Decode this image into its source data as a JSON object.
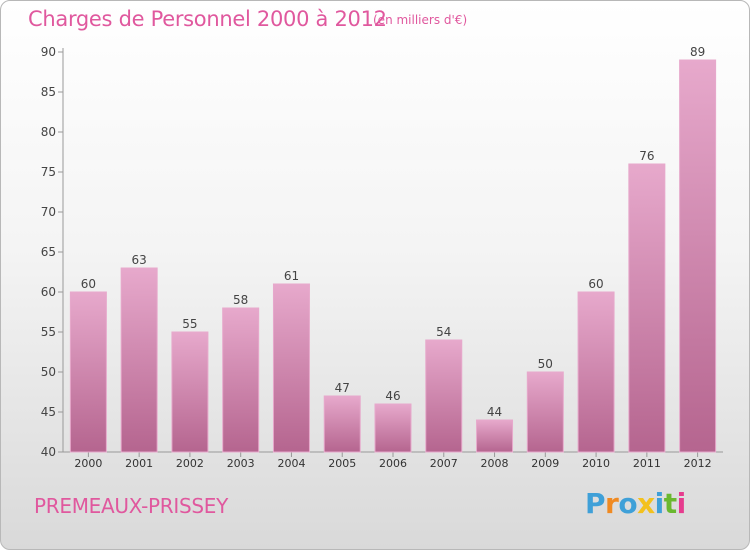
{
  "title": "Charges de Personnel 2000 à 2012",
  "subtitle": "(en milliers d'€)",
  "commune": "PREMEAUX-PRISSEY",
  "logo": {
    "letters": [
      "P",
      "r",
      "o",
      "x",
      "i",
      "t",
      "i"
    ],
    "colors": [
      "#3fa0d8",
      "#f08a22",
      "#3fa0d8",
      "#f3c11d",
      "#3fa0d8",
      "#6ab82f",
      "#e63c8e"
    ]
  },
  "colors": {
    "bar": "#d88db8",
    "bar_light": "#e7a9cc",
    "bar_dark": "#b5658f",
    "text": "#e0589e"
  },
  "chart_data": {
    "type": "bar",
    "categories": [
      "2000",
      "2001",
      "2002",
      "2003",
      "2004",
      "2005",
      "2006",
      "2007",
      "2008",
      "2009",
      "2010",
      "2011",
      "2012"
    ],
    "values": [
      60,
      63,
      55,
      58,
      61,
      47,
      46,
      54,
      44,
      50,
      60,
      76,
      89
    ],
    "data_labels": [
      "60",
      "63",
      "55",
      "58",
      "61",
      "47",
      "46",
      "54",
      "44",
      "50",
      "60",
      "76",
      "89"
    ],
    "ylim": [
      40,
      90
    ],
    "yticks": [
      40,
      45,
      50,
      55,
      60,
      65,
      70,
      75,
      80,
      85,
      90
    ],
    "grid": false
  }
}
